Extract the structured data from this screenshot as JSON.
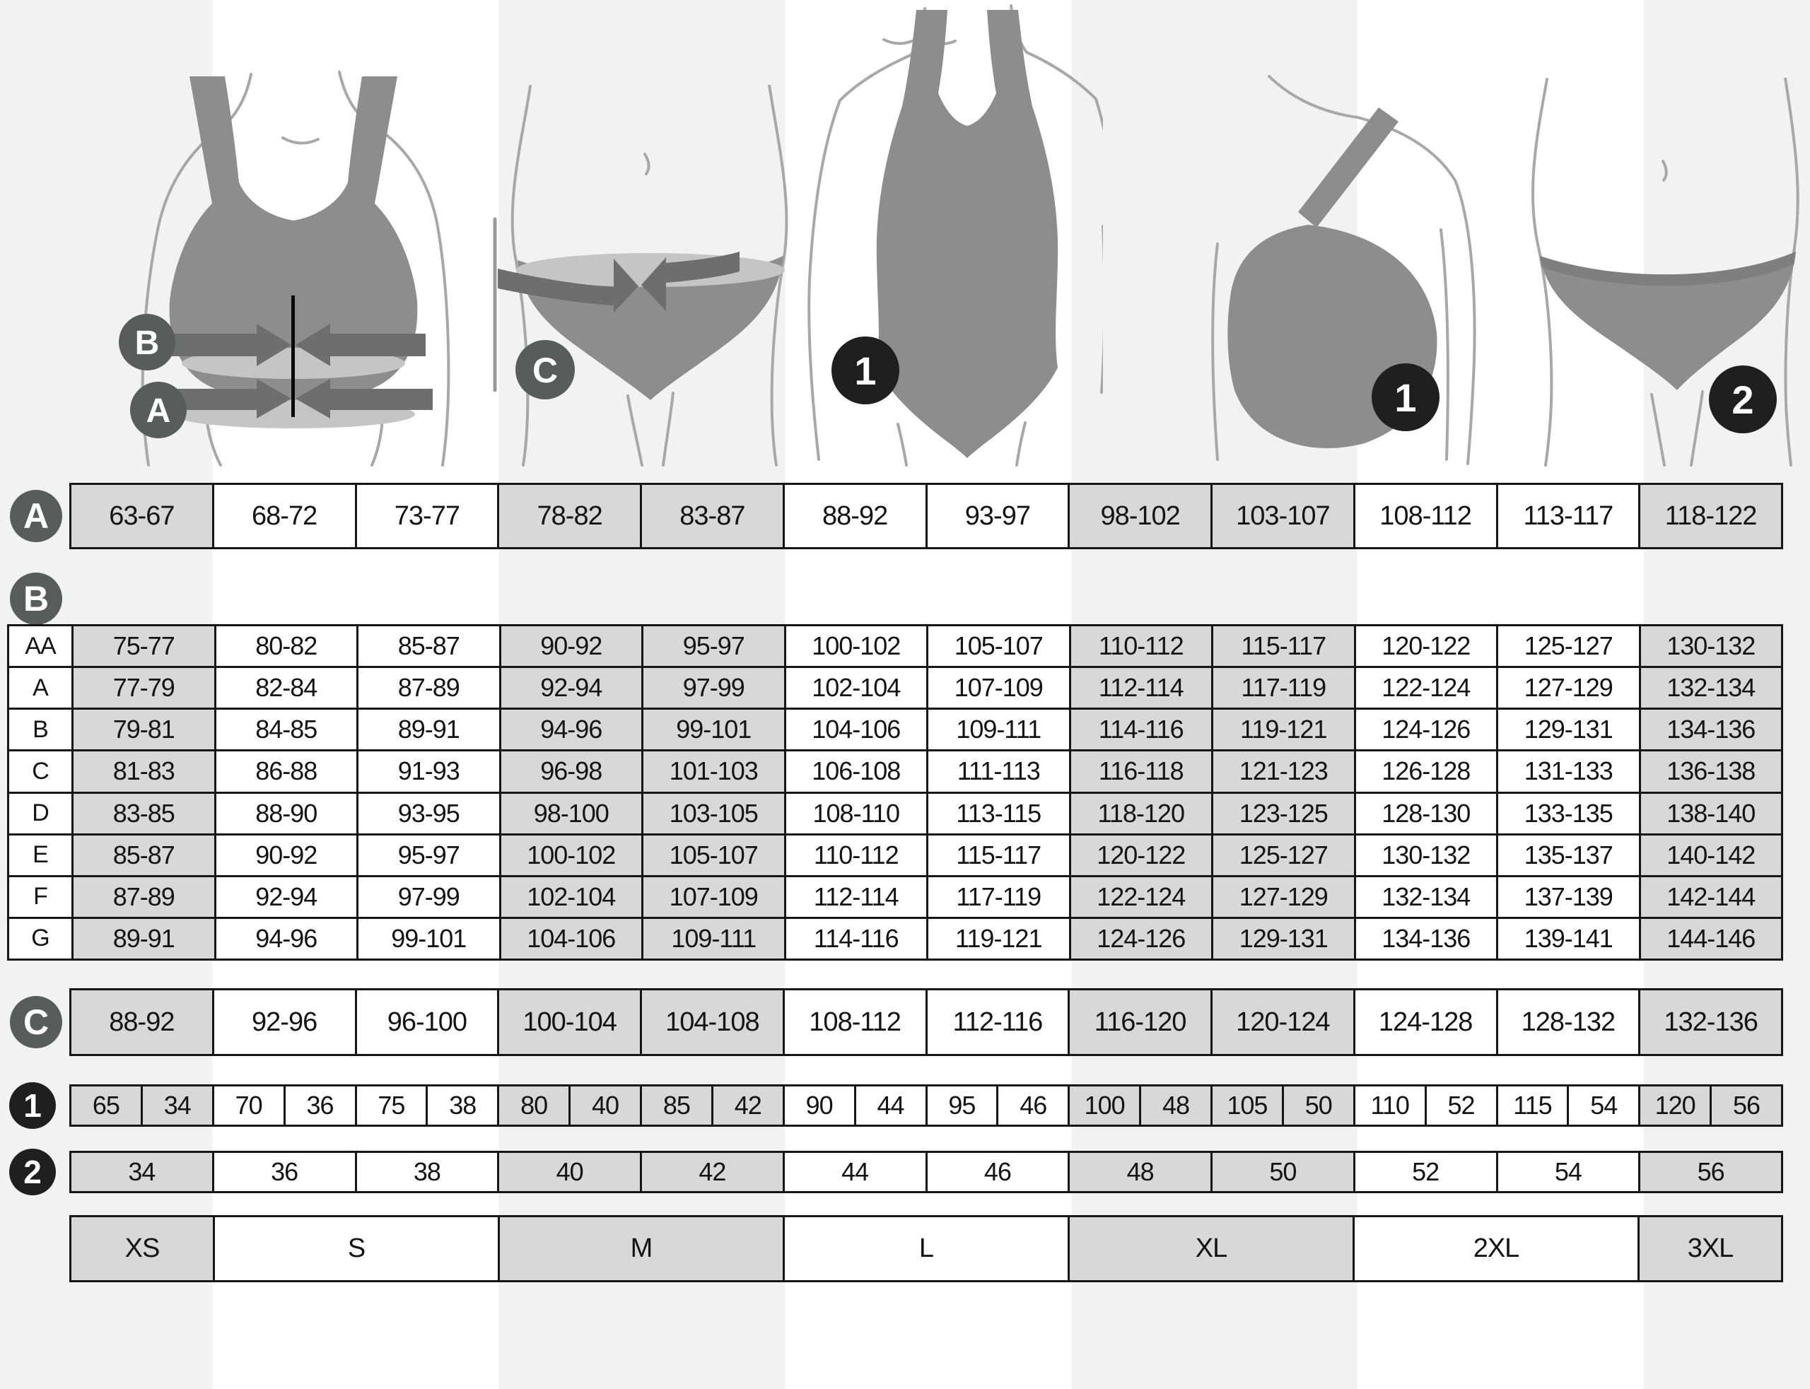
{
  "markers": {
    "a": "A",
    "b": "B",
    "c": "C",
    "one": "1",
    "two": "2"
  },
  "figure_badges": {
    "fig1_top": "B",
    "fig1_bottom": "A",
    "fig2": "C",
    "fig3": "1",
    "fig4": "1",
    "fig5": "2"
  },
  "colors": {
    "cell_gray": "#d8d8d8",
    "stripe": "#f2f2f2",
    "border": "#161616",
    "badge_gray": "#5a5b5b",
    "badge_dark": "#1f1f1f",
    "garment_gray": "#8d8d8d"
  },
  "chart_data": {
    "type": "table",
    "row_a_underbust_cm": [
      "63-67",
      "68-72",
      "73-77",
      "78-82",
      "83-87",
      "88-92",
      "93-97",
      "98-102",
      "103-107",
      "108-112",
      "113-117",
      "118-122"
    ],
    "cup_table_b": {
      "rows": [
        {
          "label": "AA",
          "values": [
            "75-77",
            "80-82",
            "85-87",
            "90-92",
            "95-97",
            "100-102",
            "105-107",
            "110-112",
            "115-117",
            "120-122",
            "125-127",
            "130-132"
          ]
        },
        {
          "label": "A",
          "values": [
            "77-79",
            "82-84",
            "87-89",
            "92-94",
            "97-99",
            "102-104",
            "107-109",
            "112-114",
            "117-119",
            "122-124",
            "127-129",
            "132-134"
          ]
        },
        {
          "label": "B",
          "values": [
            "79-81",
            "84-85",
            "89-91",
            "94-96",
            "99-101",
            "104-106",
            "109-111",
            "114-116",
            "119-121",
            "124-126",
            "129-131",
            "134-136"
          ]
        },
        {
          "label": "C",
          "values": [
            "81-83",
            "86-88",
            "91-93",
            "96-98",
            "101-103",
            "106-108",
            "111-113",
            "116-118",
            "121-123",
            "126-128",
            "131-133",
            "136-138"
          ]
        },
        {
          "label": "D",
          "values": [
            "83-85",
            "88-90",
            "93-95",
            "98-100",
            "103-105",
            "108-110",
            "113-115",
            "118-120",
            "123-125",
            "128-130",
            "133-135",
            "138-140"
          ]
        },
        {
          "label": "E",
          "values": [
            "85-87",
            "90-92",
            "95-97",
            "100-102",
            "105-107",
            "110-112",
            "115-117",
            "120-122",
            "125-127",
            "130-132",
            "135-137",
            "140-142"
          ]
        },
        {
          "label": "F",
          "values": [
            "87-89",
            "92-94",
            "97-99",
            "102-104",
            "107-109",
            "112-114",
            "117-119",
            "122-124",
            "127-129",
            "132-134",
            "137-139",
            "142-144"
          ]
        },
        {
          "label": "G",
          "values": [
            "89-91",
            "94-96",
            "99-101",
            "104-106",
            "109-111",
            "114-116",
            "119-121",
            "124-126",
            "129-131",
            "134-136",
            "139-141",
            "144-146"
          ]
        }
      ]
    },
    "row_c_hips_cm": [
      "88-92",
      "92-96",
      "96-100",
      "100-104",
      "104-108",
      "108-112",
      "112-116",
      "116-120",
      "120-124",
      "124-128",
      "128-132",
      "132-136"
    ],
    "row_1_pairs": [
      "65",
      "34",
      "70",
      "36",
      "75",
      "38",
      "80",
      "40",
      "85",
      "42",
      "90",
      "44",
      "95",
      "46",
      "100",
      "48",
      "105",
      "50",
      "110",
      "52",
      "115",
      "54",
      "120",
      "56"
    ],
    "row_2": [
      "34",
      "36",
      "38",
      "40",
      "42",
      "44",
      "46",
      "48",
      "50",
      "52",
      "54",
      "56"
    ],
    "sizes": [
      {
        "label": "XS",
        "span": 1
      },
      {
        "label": "S",
        "span": 2
      },
      {
        "label": "M",
        "span": 2
      },
      {
        "label": "L",
        "span": 2
      },
      {
        "label": "XL",
        "span": 2
      },
      {
        "label": "2XL",
        "span": 2
      },
      {
        "label": "3XL",
        "span": 1
      }
    ]
  }
}
